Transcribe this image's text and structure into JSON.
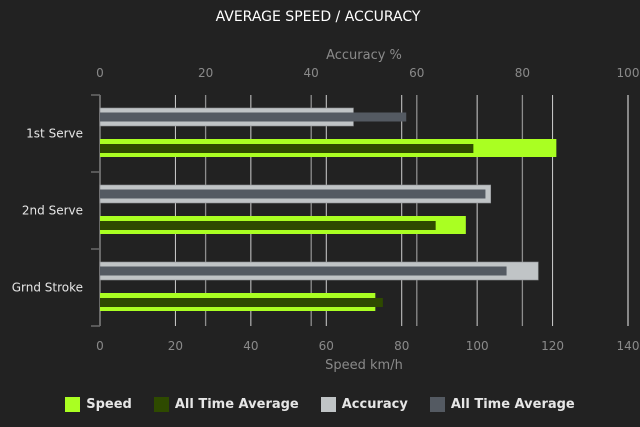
{
  "chart_data": {
    "type": "bar",
    "orientation": "horizontal",
    "title": "AVERAGE SPEED / ACCURACY",
    "categories": [
      "1st Serve",
      "2nd Serve",
      "Grnd Stroke"
    ],
    "x_top": {
      "label": "Accuracy %",
      "range": [
        0,
        100
      ],
      "ticks": [
        0,
        20,
        40,
        60,
        80,
        100
      ]
    },
    "x_bottom": {
      "label": "Speed km/h",
      "range": [
        0,
        140
      ],
      "ticks": [
        0,
        20,
        40,
        60,
        80,
        100,
        120,
        140
      ]
    },
    "grid": true,
    "legend_position": "bottom",
    "series": [
      {
        "name": "Speed",
        "axis": "speed",
        "color": "#aaff22",
        "values": [
          121,
          97,
          73
        ]
      },
      {
        "name": "All Time Average",
        "axis": "speed",
        "color": "#2e4a00",
        "values": [
          99,
          89,
          75
        ]
      },
      {
        "name": "Accuracy",
        "axis": "accuracy",
        "color": "#c0c4c6",
        "values": [
          48,
          74,
          83
        ]
      },
      {
        "name": "All Time Average",
        "axis": "accuracy",
        "color": "#545a62",
        "values": [
          58,
          73,
          77
        ]
      }
    ]
  }
}
